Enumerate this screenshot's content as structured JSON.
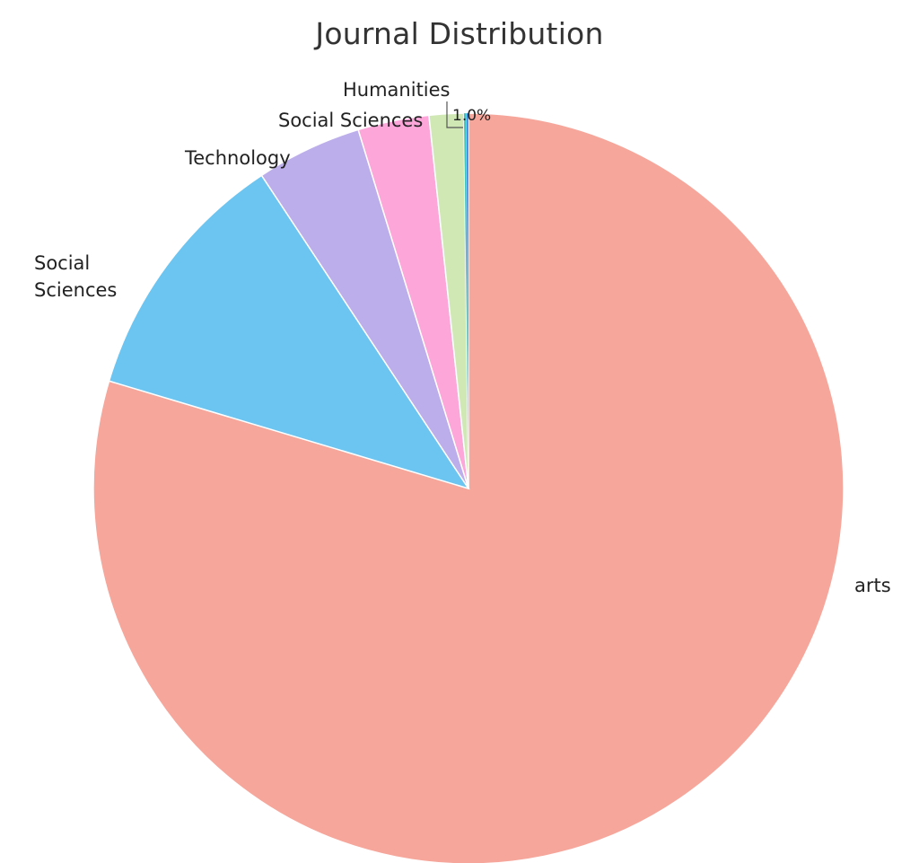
{
  "chart_data": {
    "type": "pie",
    "title": "Journal Distribution",
    "slices": [
      {
        "label": "arts",
        "value": 80.5,
        "color": "#f6a69b"
      },
      {
        "label": "Social Sciences",
        "value": 11.2,
        "color": "#6cc4f0"
      },
      {
        "label": "Technology",
        "value": 4.6,
        "color": "#bcaeea"
      },
      {
        "label": "Social Sciences",
        "value": 3.1,
        "color": "#fca6da"
      },
      {
        "label": "Humanities",
        "value": 1.5,
        "color": "#cfe8b4"
      },
      {
        "label": "",
        "value": 0.1,
        "color": "#3cc0b8"
      },
      {
        "label": "",
        "value": 0.1,
        "color": "#3a8ee0"
      }
    ],
    "small_slice_label": "1.0%"
  }
}
